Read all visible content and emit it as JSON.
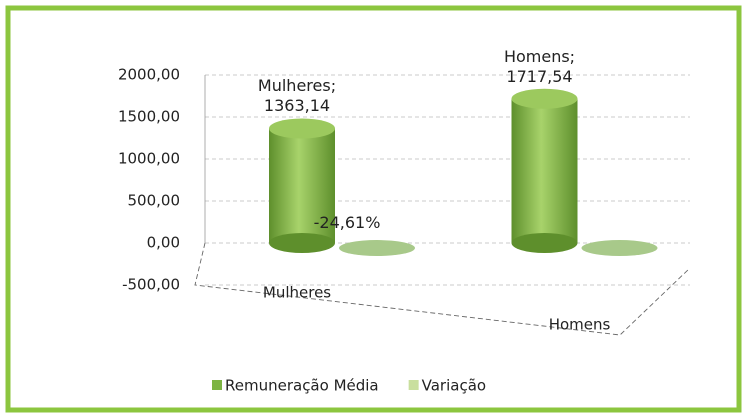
{
  "chart_data": {
    "type": "cylinder-bar",
    "categories": [
      "Mulheres",
      "Homens"
    ],
    "series": [
      {
        "name": "Remuneração Média",
        "color": "#7db443",
        "values": [
          1363.14,
          1717.54
        ],
        "value_labels": [
          "Mulheres;\n1363,14",
          "Homens;\n1717,54"
        ]
      },
      {
        "name": "Variação",
        "color": "#c9df9e",
        "values": [
          -0.2461,
          0
        ],
        "value_labels": [
          "-24,61%",
          null
        ]
      }
    ],
    "ylim": [
      -500,
      2000
    ],
    "yticks": [
      {
        "value": -500,
        "label": "-500,00"
      },
      {
        "value": 0,
        "label": "0,00"
      },
      {
        "value": 500,
        "label": "500,00"
      },
      {
        "value": 1000,
        "label": "1000,00"
      },
      {
        "value": 1500,
        "label": "1500,00"
      },
      {
        "value": 2000,
        "label": "2000,00"
      }
    ],
    "legend": "bottom"
  }
}
